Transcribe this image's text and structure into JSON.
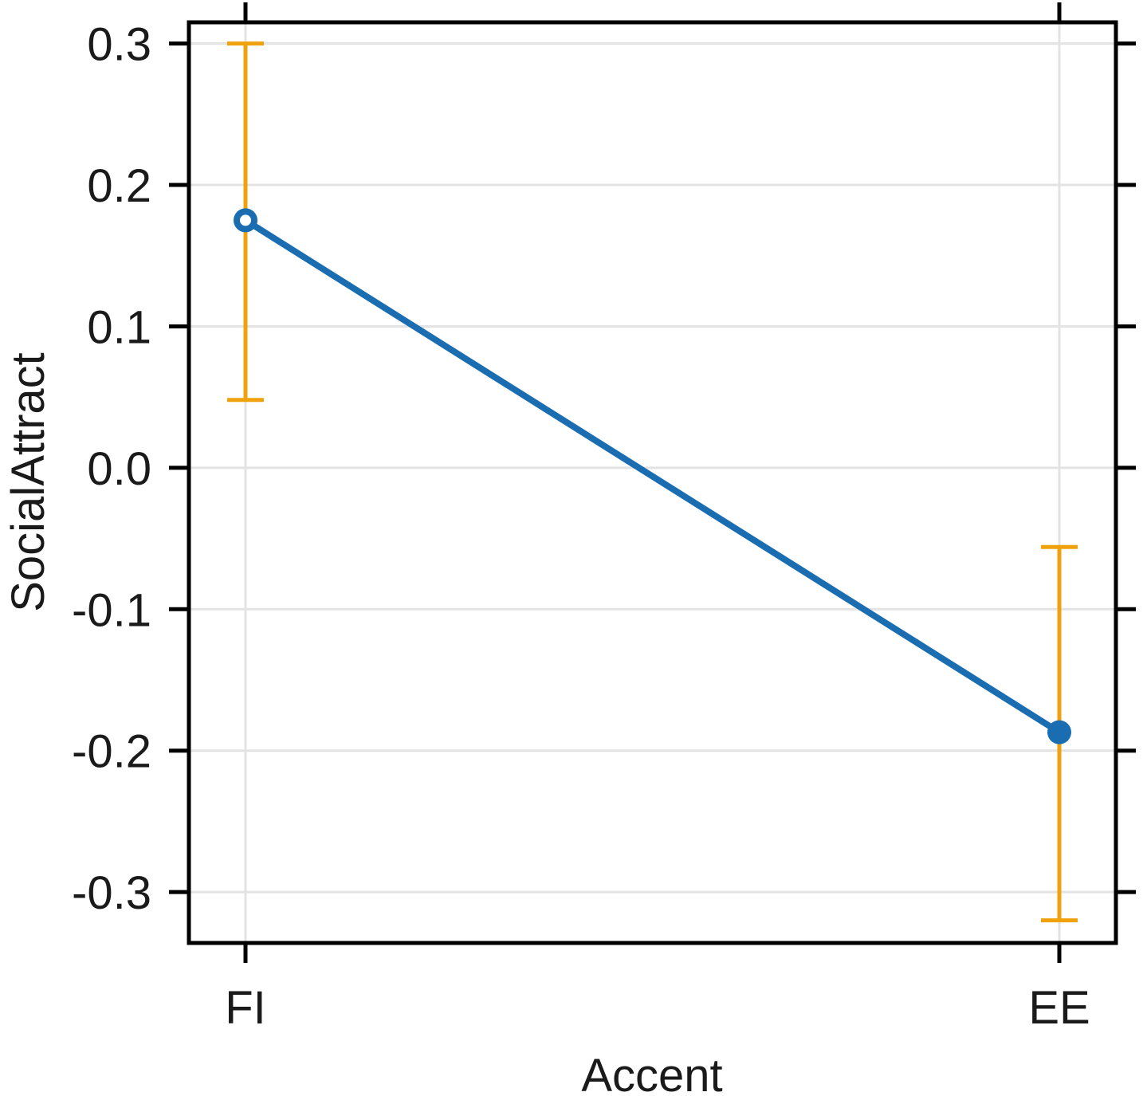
{
  "chart_data": {
    "type": "line",
    "title": "",
    "xlabel": "Accent",
    "ylabel": "SocialAttract",
    "categories": [
      "FI",
      "EE"
    ],
    "series": [
      {
        "name": "SocialAttract mean",
        "values": [
          0.175,
          -0.187
        ],
        "error_bars": [
          {
            "low": 0.048,
            "high": 0.3
          },
          {
            "low": -0.32,
            "high": -0.056
          }
        ],
        "marker_styles": [
          "open-circle",
          "filled-circle"
        ]
      }
    ],
    "yticks": [
      0.3,
      0.2,
      0.1,
      0,
      -0.1,
      -0.2,
      -0.3
    ],
    "ytick_labels": [
      "0.3",
      "0.2",
      "0.1",
      "0.0",
      "-0.1",
      "-0.2",
      "-0.3"
    ],
    "ylim": [
      -0.336,
      0.315
    ],
    "grid": true,
    "legend": false,
    "layout_hints": {
      "tick_sides": [
        "left",
        "right",
        "top",
        "bottom"
      ],
      "gridlines": "horizontal at each y tick, vertical at each category"
    },
    "colors": {
      "line": "#1b6db1",
      "error_bar": "#efa20d",
      "grid": "#e3e3e3",
      "axis": "#000000",
      "text": "#1a1a1a",
      "background": "#ffffff"
    }
  }
}
